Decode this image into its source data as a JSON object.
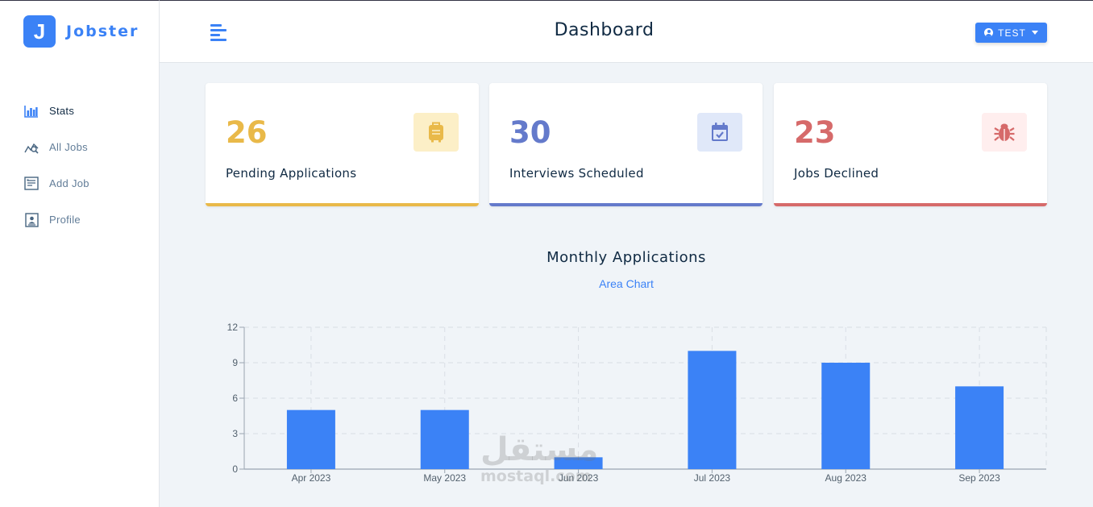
{
  "app": {
    "logo_letter": "J",
    "logo_text": "Jobster",
    "brand_color": "#3b82f6"
  },
  "sidebar": {
    "items": [
      {
        "label": "Stats",
        "icon": "bar-chart-icon",
        "active": true
      },
      {
        "label": "All Jobs",
        "icon": "search-chart-icon",
        "active": false
      },
      {
        "label": "Add Job",
        "icon": "form-icon",
        "active": false
      },
      {
        "label": "Profile",
        "icon": "id-card-icon",
        "active": false
      }
    ]
  },
  "header": {
    "title": "Dashboard",
    "user_label": "TEST",
    "toggle_icon": "menu-icon"
  },
  "stats": [
    {
      "count": "26",
      "title": "Pending Applications",
      "icon": "suitcase-icon",
      "color": "#e9b949",
      "bg": "#fcefc7"
    },
    {
      "count": "30",
      "title": "Interviews Scheduled",
      "icon": "calendar-check-icon",
      "color": "#647acb",
      "bg": "#e0e8f9"
    },
    {
      "count": "23",
      "title": "Jobs Declined",
      "icon": "bug-icon",
      "color": "#d66a6a",
      "bg": "#ffeeee"
    }
  ],
  "chart_section": {
    "title": "Monthly Applications",
    "toggle_label": "Area Chart"
  },
  "chart_data": {
    "type": "bar",
    "categories": [
      "Apr 2023",
      "May 2023",
      "Jun 2023",
      "Jul 2023",
      "Aug 2023",
      "Sep 2023"
    ],
    "values": [
      5,
      5,
      1,
      10,
      9,
      7
    ],
    "ylim": [
      0,
      12
    ],
    "yticks": [
      0,
      3,
      6,
      9,
      12
    ],
    "grid": true,
    "bar_color": "#3b82f6",
    "title": "",
    "xlabel": "",
    "ylabel": ""
  },
  "watermark": {
    "arabic": "مستقل",
    "latin": "mostaql.com"
  }
}
